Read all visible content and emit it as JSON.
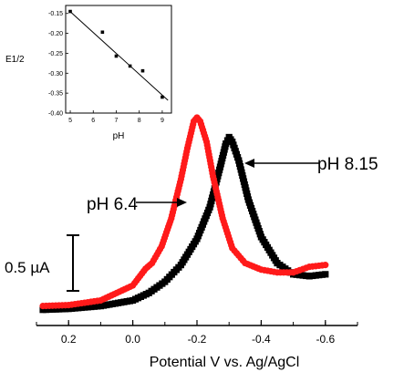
{
  "chart_data": [
    {
      "type": "scatter",
      "panel": "main",
      "xlabel": "Potential V vs. Ag/AgCl",
      "ylabel": "",
      "xlim": [
        0.3,
        -0.7
      ],
      "x_axis_reversed": true,
      "x_ticks": [
        0.2,
        0.0,
        -0.2,
        -0.4,
        -0.6
      ],
      "x_tick_labels": [
        "0.2",
        "0.0",
        "-0.2",
        "-0.4",
        "-0.6"
      ],
      "ylim": [
        0.0,
        2.6
      ],
      "y_units": "µA",
      "grid": false,
      "series": [
        {
          "name": "pH 8.15",
          "color": "#000000",
          "marker": "square",
          "points": [
            [
              0.28,
              0.12
            ],
            [
              0.2,
              0.13
            ],
            [
              0.1,
              0.16
            ],
            [
              0.0,
              0.22
            ],
            [
              -0.05,
              0.3
            ],
            [
              -0.1,
              0.42
            ],
            [
              -0.15,
              0.6
            ],
            [
              -0.2,
              0.88
            ],
            [
              -0.24,
              1.22
            ],
            [
              -0.27,
              1.62
            ],
            [
              -0.29,
              1.9
            ],
            [
              -0.3,
              1.97
            ],
            [
              -0.31,
              1.92
            ],
            [
              -0.33,
              1.72
            ],
            [
              -0.36,
              1.3
            ],
            [
              -0.4,
              0.9
            ],
            [
              -0.45,
              0.62
            ],
            [
              -0.5,
              0.5
            ],
            [
              -0.55,
              0.48
            ],
            [
              -0.6,
              0.5
            ]
          ]
        },
        {
          "name": "pH 6.4",
          "color": "#ff1a1a",
          "marker": "circle",
          "points": [
            [
              0.28,
              0.16
            ],
            [
              0.2,
              0.17
            ],
            [
              0.1,
              0.22
            ],
            [
              0.05,
              0.3
            ],
            [
              0.0,
              0.38
            ],
            [
              -0.04,
              0.56
            ],
            [
              -0.06,
              0.62
            ],
            [
              -0.09,
              0.8
            ],
            [
              -0.12,
              1.1
            ],
            [
              -0.15,
              1.52
            ],
            [
              -0.17,
              1.85
            ],
            [
              -0.19,
              2.14
            ],
            [
              -0.2,
              2.18
            ],
            [
              -0.21,
              2.14
            ],
            [
              -0.23,
              1.92
            ],
            [
              -0.25,
              1.55
            ],
            [
              -0.28,
              1.1
            ],
            [
              -0.31,
              0.78
            ],
            [
              -0.35,
              0.62
            ],
            [
              -0.4,
              0.55
            ],
            [
              -0.45,
              0.52
            ],
            [
              -0.5,
              0.52
            ],
            [
              -0.55,
              0.58
            ],
            [
              -0.6,
              0.6
            ]
          ]
        }
      ],
      "annotations": [
        {
          "text": "pH 8.15",
          "points_to_series": "pH 8.15"
        },
        {
          "text": "pH 6.4",
          "points_to_series": "pH 6.4"
        }
      ],
      "scale_bar": {
        "label": "0.5 µA",
        "value": 0.5,
        "units": "µA"
      }
    },
    {
      "type": "scatter",
      "panel": "inset",
      "xlabel": "pH",
      "ylabel": "E1/2",
      "xlim": [
        4.8,
        9.4
      ],
      "ylim": [
        -0.4,
        -0.13
      ],
      "x_ticks": [
        5,
        6,
        7,
        8,
        9
      ],
      "x_tick_labels": [
        "5",
        "6",
        "7",
        "8",
        "9"
      ],
      "y_ticks": [
        -0.15,
        -0.2,
        -0.25,
        -0.3,
        -0.35,
        -0.4
      ],
      "y_tick_labels": [
        "-0.15",
        "-0.20",
        "-0.25",
        "-0.30",
        "-0.35",
        "-0.40"
      ],
      "grid": false,
      "series": [
        {
          "color": "#000000",
          "marker": "square",
          "points": [
            [
              5.0,
              -0.145
            ],
            [
              6.4,
              -0.197
            ],
            [
              7.0,
              -0.257
            ],
            [
              7.6,
              -0.282
            ],
            [
              8.15,
              -0.294
            ],
            [
              9.0,
              -0.36
            ]
          ]
        }
      ],
      "fit_line": {
        "x": [
          4.95,
          9.25
        ],
        "y": [
          -0.143,
          -0.368
        ]
      }
    }
  ]
}
